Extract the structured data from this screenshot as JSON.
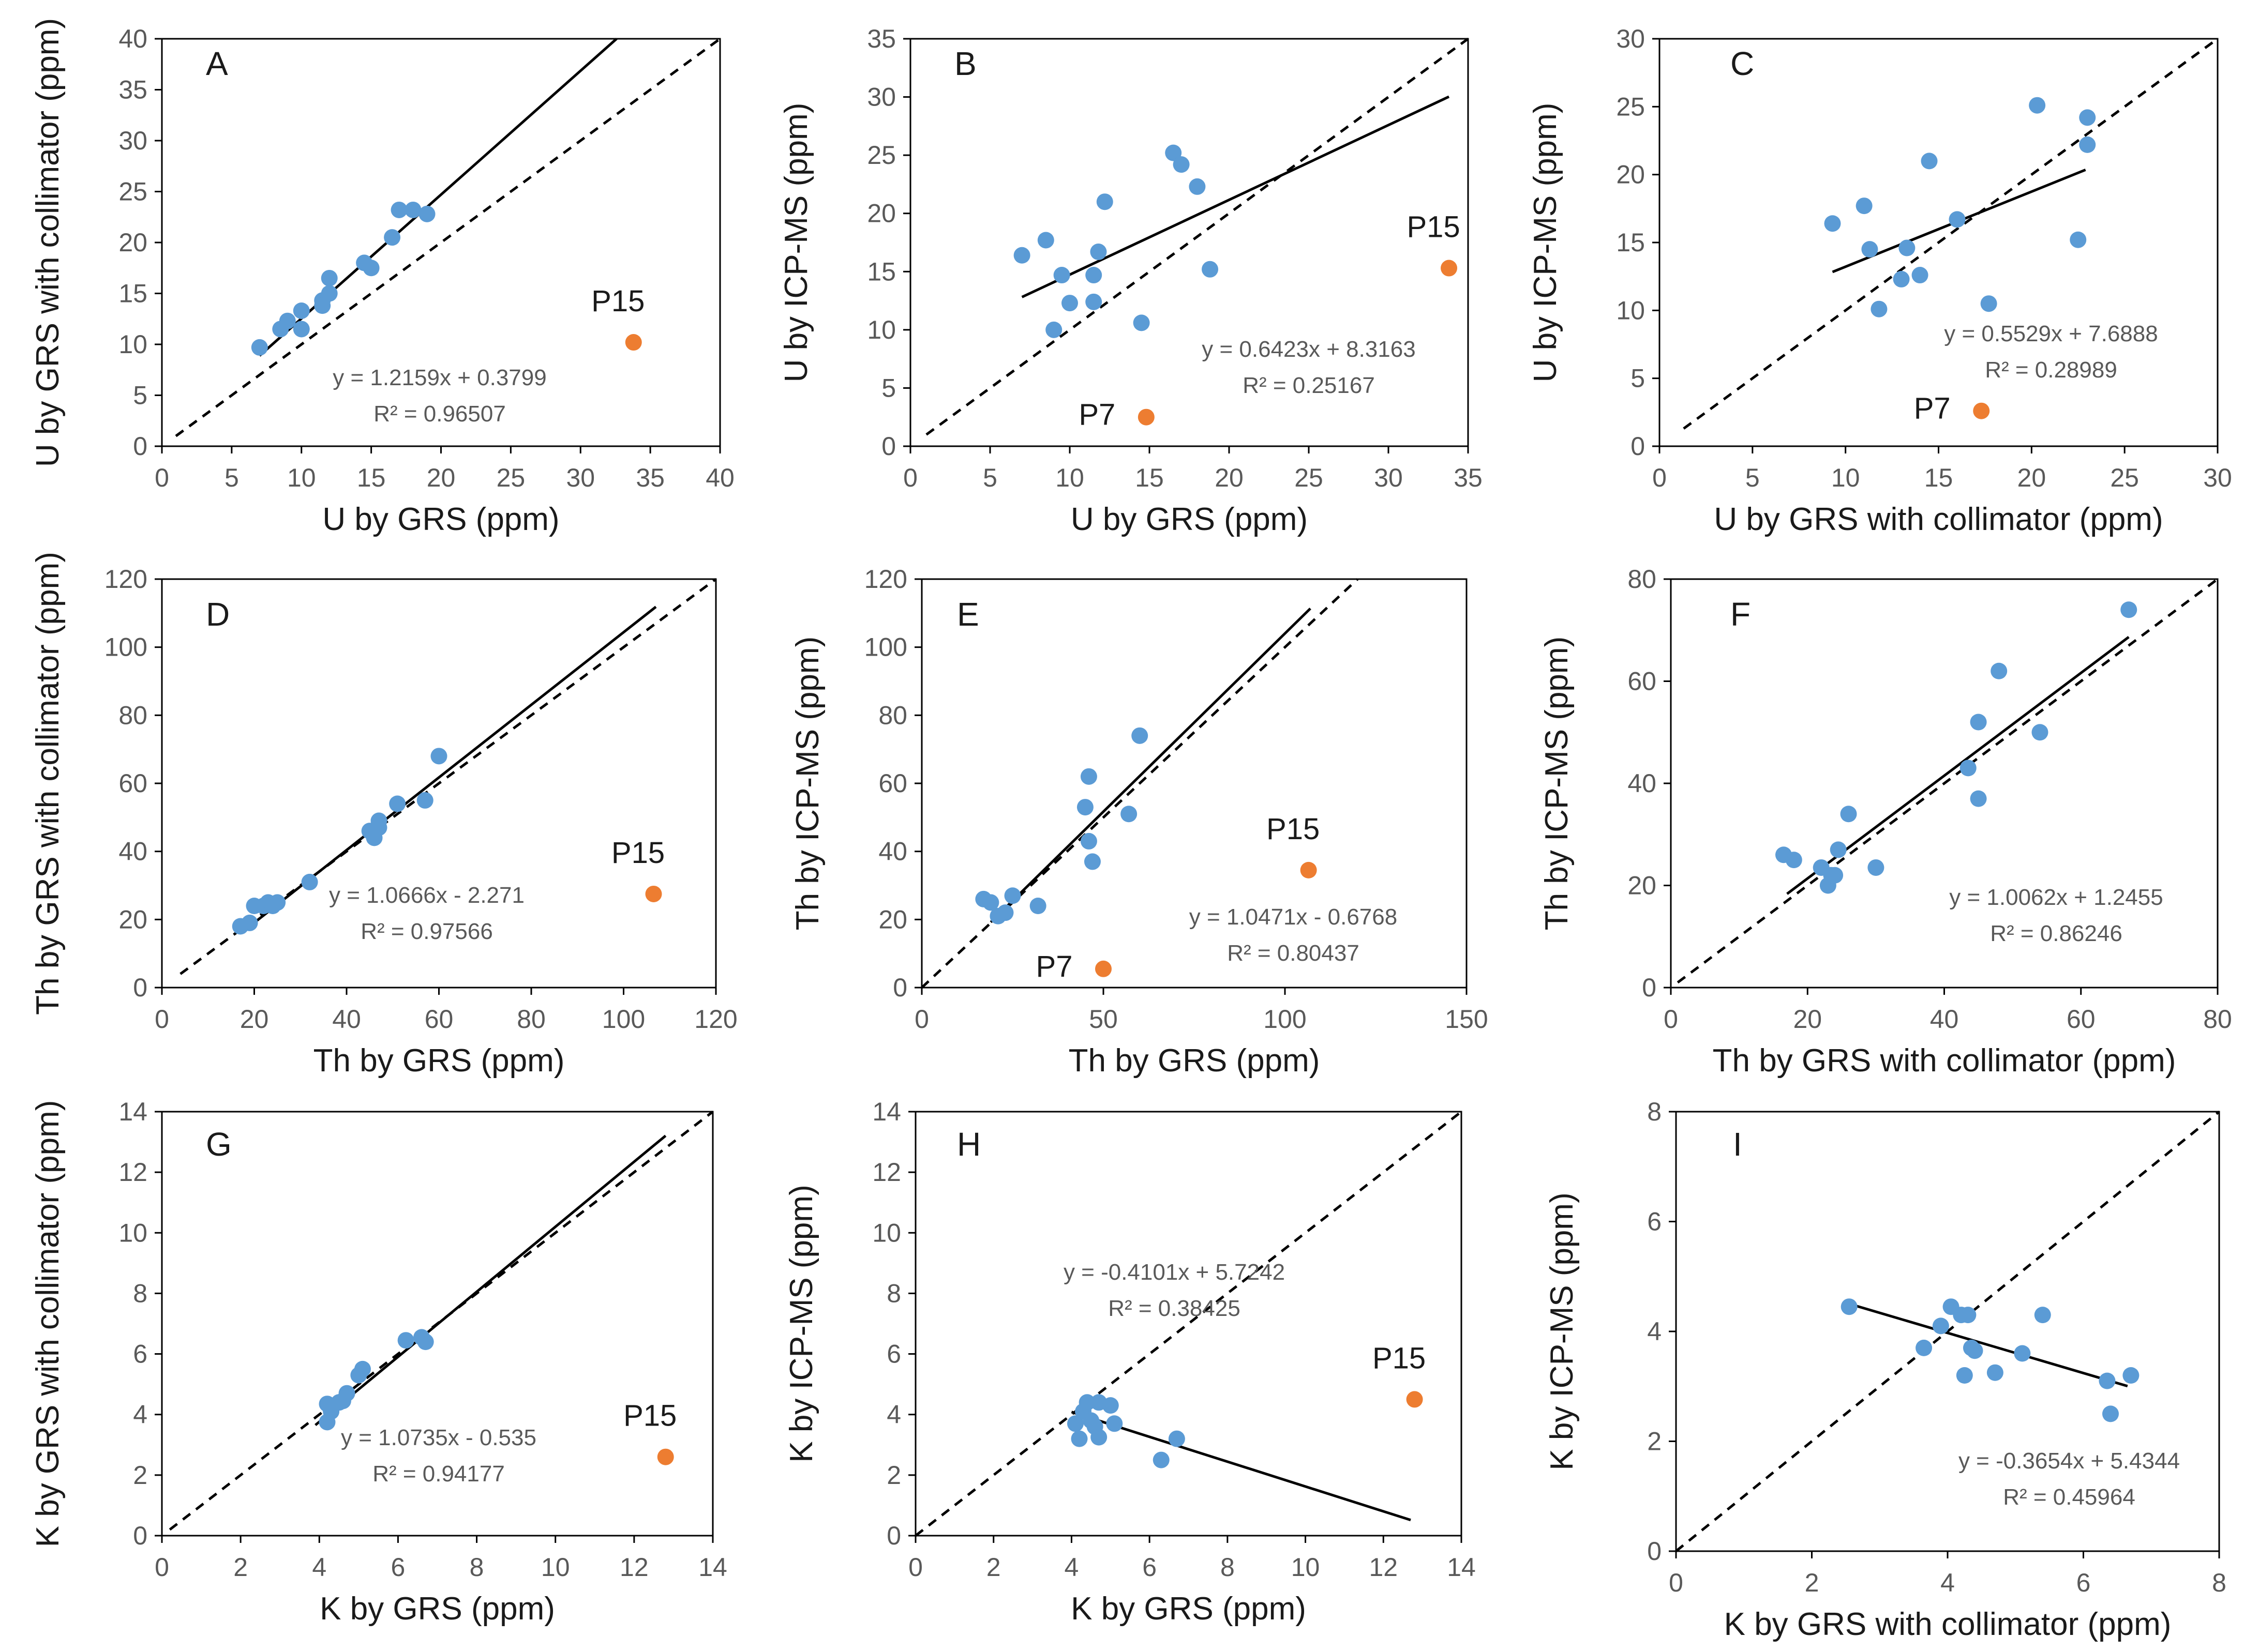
{
  "colors": {
    "point": "#5B9BD5",
    "outlier": "#ED7D31",
    "axis": "#000000",
    "text": "#595959"
  },
  "chart_data": [
    {
      "type": "scatter",
      "panel": "A",
      "xlabel": "U by GRS (ppm)",
      "ylabel": "U by GRS with collimator (ppm)",
      "xlim": [
        0,
        40
      ],
      "ylim": [
        0,
        40
      ],
      "xticks": [
        "0",
        "5",
        "10",
        "15",
        "20",
        "25",
        "30",
        "35",
        "40"
      ],
      "yticks": [
        "0",
        "5",
        "10",
        "15",
        "20",
        "25",
        "30",
        "35",
        "40"
      ],
      "x": [
        7,
        8.5,
        9,
        10,
        10,
        11.5,
        12,
        12,
        11.5,
        14.5,
        15,
        16.5,
        17,
        18,
        19
      ],
      "y": [
        9.7,
        11.5,
        12.3,
        11.5,
        13.3,
        14.3,
        15,
        16.5,
        13.8,
        18,
        17.5,
        20.5,
        23.2,
        23.2,
        22.8
      ],
      "fit": {
        "slope": 1.2159,
        "intercept": 0.3799,
        "x_range": [
          7,
          32.6
        ],
        "equation": "y = 1.2159x + 0.3799",
        "r2": "R² = 0.96507"
      },
      "identity_range": [
        1,
        40
      ],
      "outliers": [
        {
          "x": 33.8,
          "y": 10.2,
          "label": "P15"
        }
      ]
    },
    {
      "type": "scatter",
      "panel": "B",
      "xlabel": "U by GRS (ppm)",
      "ylabel": "U by ICP-MS (ppm)",
      "xlim": [
        0,
        35
      ],
      "ylim": [
        0,
        35
      ],
      "xticks": [
        "0",
        "5",
        "10",
        "15",
        "20",
        "25",
        "30",
        "35"
      ],
      "yticks": [
        "0",
        "5",
        "10",
        "15",
        "20",
        "25",
        "30",
        "35"
      ],
      "x": [
        7,
        8.5,
        9,
        9.5,
        10,
        11.5,
        11.5,
        11.8,
        12.2,
        14.5,
        16.5,
        17,
        18,
        18.8
      ],
      "y": [
        16.4,
        17.7,
        10,
        14.7,
        12.3,
        14.7,
        12.4,
        16.7,
        21,
        10.6,
        25.2,
        24.2,
        22.3,
        15.2
      ],
      "fit": {
        "slope": 0.6423,
        "intercept": 8.3163,
        "x_range": [
          7,
          33.8
        ],
        "equation": "y = 0.6423x + 8.3163",
        "r2": "R² = 0.25167"
      },
      "identity_range": [
        1,
        35
      ],
      "outliers": [
        {
          "x": 14.8,
          "y": 2.5,
          "label": "P7"
        },
        {
          "x": 33.8,
          "y": 15.3,
          "label": "P15"
        }
      ]
    },
    {
      "type": "scatter",
      "panel": "C",
      "xlabel": "U by GRS with collimator (ppm)",
      "ylabel": "U by ICP-MS (ppm)",
      "xlim": [
        0,
        30
      ],
      "ylim": [
        0,
        30
      ],
      "xticks": [
        "0",
        "5",
        "10",
        "15",
        "20",
        "25",
        "30"
      ],
      "yticks": [
        "0",
        "5",
        "10",
        "15",
        "20",
        "25",
        "30"
      ],
      "x": [
        9.3,
        11,
        11.3,
        11.8,
        13,
        13.3,
        14,
        14.5,
        16,
        17.7,
        20.3,
        22.5,
        23,
        23
      ],
      "y": [
        16.4,
        17.7,
        14.5,
        10.1,
        12.3,
        14.6,
        12.6,
        21,
        16.7,
        10.5,
        25.1,
        15.2,
        24.2,
        22.2
      ],
      "fit": {
        "slope": 0.5529,
        "intercept": 7.6888,
        "x_range": [
          9.3,
          22.9
        ],
        "equation": "y = 0.5529x + 7.6888",
        "r2": "R² = 0.28989"
      },
      "identity_range": [
        1.3,
        30
      ],
      "outliers": [
        {
          "x": 17.3,
          "y": 2.6,
          "label": "P7"
        }
      ]
    },
    {
      "type": "scatter",
      "panel": "D",
      "xlabel": "Th by GRS (ppm)",
      "ylabel": "Th by GRS with collimator (ppm)",
      "xlim": [
        0,
        120
      ],
      "ylim": [
        0,
        120
      ],
      "xticks": [
        "0",
        "20",
        "40",
        "60",
        "80",
        "100",
        "120"
      ],
      "yticks": [
        "0",
        "20",
        "40",
        "60",
        "80",
        "100",
        "120"
      ],
      "x": [
        17,
        19,
        20,
        22,
        23,
        24,
        25,
        32,
        45,
        46,
        47,
        47,
        51,
        57,
        60
      ],
      "y": [
        18,
        19,
        24,
        24,
        25,
        24,
        25,
        31,
        46,
        44,
        47,
        49,
        54,
        55,
        68
      ],
      "fit": {
        "slope": 1.0666,
        "intercept": -2.271,
        "x_range": [
          18,
          107
        ],
        "equation": "y = 1.0666x - 2.271",
        "r2": "R² = 0.97566"
      },
      "identity_range": [
        4,
        120
      ],
      "outliers": [
        {
          "x": 106.5,
          "y": 27.5,
          "label": "P15"
        }
      ]
    },
    {
      "type": "scatter",
      "panel": "E",
      "xlabel": "Th by GRS (ppm)",
      "ylabel": "Th by ICP-MS (ppm)",
      "xlim": [
        0,
        150
      ],
      "ylim": [
        0,
        120
      ],
      "xticks": [
        "0",
        "50",
        "100",
        "150"
      ],
      "yticks": [
        "0",
        "20",
        "40",
        "60",
        "80",
        "100",
        "120"
      ],
      "x": [
        17,
        19,
        21,
        23,
        25,
        32,
        45,
        46,
        46,
        47,
        57,
        60
      ],
      "y": [
        26,
        25,
        21,
        22,
        27,
        24,
        53,
        62,
        43,
        37,
        51,
        74
      ],
      "fit": {
        "slope": 1.0471,
        "intercept": -0.6768,
        "x_range": [
          19,
          107
        ],
        "equation": "y = 1.0471x - 0.6768",
        "r2": "R² = 0.80437"
      },
      "identity_range": [
        0,
        150
      ],
      "outliers": [
        {
          "x": 50,
          "y": 5.5,
          "label": "P7"
        },
        {
          "x": 106.5,
          "y": 34.5,
          "label": "P15"
        }
      ]
    },
    {
      "type": "scatter",
      "panel": "F",
      "xlabel": "Th by GRS with collimator (ppm)",
      "ylabel": "Th by ICP-MS (ppm)",
      "xlim": [
        0,
        80
      ],
      "ylim": [
        0,
        80
      ],
      "xticks": [
        "0",
        "20",
        "40",
        "60",
        "80"
      ],
      "yticks": [
        "0",
        "20",
        "40",
        "60",
        "80"
      ],
      "x": [
        16.5,
        18,
        22,
        23,
        23.5,
        24,
        24.5,
        26,
        30,
        43.5,
        45,
        45,
        48,
        54,
        67
      ],
      "y": [
        26,
        25,
        23.5,
        20,
        22,
        22,
        27,
        34,
        23.5,
        43,
        52,
        37,
        62,
        50,
        74
      ],
      "fit": {
        "slope": 1.0062,
        "intercept": 1.2455,
        "x_range": [
          17,
          67
        ],
        "equation": "y = 1.0062x + 1.2455",
        "r2": "R² = 0.86246"
      },
      "identity_range": [
        1,
        80
      ],
      "outliers": []
    },
    {
      "type": "scatter",
      "panel": "G",
      "xlabel": "K by GRS (ppm)",
      "ylabel": "K by GRS with collimator (ppm)",
      "xlim": [
        0,
        14
      ],
      "ylim": [
        0,
        14
      ],
      "xticks": [
        "0",
        "2",
        "4",
        "6",
        "8",
        "10",
        "12",
        "14"
      ],
      "yticks": [
        "0",
        "2",
        "4",
        "6",
        "8",
        "10",
        "12",
        "14"
      ],
      "x": [
        4.2,
        4.2,
        4.3,
        4.5,
        4.6,
        4.7,
        5,
        5.1,
        6.2,
        6.6,
        6.7
      ],
      "y": [
        4.35,
        3.75,
        4.1,
        4.4,
        4.45,
        4.7,
        5.3,
        5.5,
        6.45,
        6.55,
        6.4
      ],
      "fit": {
        "slope": 1.0735,
        "intercept": -0.535,
        "x_range": [
          3.9,
          12.8
        ],
        "equation": "y = 1.0735x - 0.535",
        "r2": "R² = 0.94177"
      },
      "identity_range": [
        0.2,
        14
      ],
      "outliers": [
        {
          "x": 12.8,
          "y": 2.6,
          "label": "P15"
        }
      ]
    },
    {
      "type": "scatter",
      "panel": "H",
      "xlabel": "K by GRS (ppm)",
      "ylabel": "K by ICP-MS (ppm)",
      "xlim": [
        0,
        14
      ],
      "ylim": [
        0,
        14
      ],
      "xticks": [
        "0",
        "2",
        "4",
        "6",
        "8",
        "10",
        "12",
        "14"
      ],
      "yticks": [
        "0",
        "2",
        "4",
        "6",
        "8",
        "10",
        "12",
        "14"
      ],
      "x": [
        4.1,
        4.2,
        4.3,
        4.4,
        4.5,
        4.6,
        4.7,
        4.7,
        5,
        5.1,
        6.3,
        6.7
      ],
      "y": [
        3.7,
        3.2,
        4.1,
        4.4,
        3.8,
        3.6,
        4.4,
        3.25,
        4.3,
        3.7,
        2.5,
        3.2
      ],
      "fit": {
        "slope": -0.4101,
        "intercept": 5.7242,
        "x_range": [
          4.0,
          12.7
        ],
        "equation": "y = -0.4101x + 5.7242",
        "r2": "R² = 0.38425"
      },
      "identity_range": [
        0,
        14
      ],
      "outliers": [
        {
          "x": 12.8,
          "y": 4.5,
          "label": "P15"
        }
      ]
    },
    {
      "type": "scatter",
      "panel": "I",
      "xlabel": "K by GRS with collimator (ppm)",
      "ylabel": "K by ICP-MS (ppm)",
      "xlim": [
        0,
        8
      ],
      "ylim": [
        0,
        8
      ],
      "xticks": [
        "0",
        "2",
        "4",
        "6",
        "8"
      ],
      "yticks": [
        "0",
        "2",
        "4",
        "6",
        "8"
      ],
      "x": [
        2.55,
        3.65,
        3.9,
        4.05,
        4.2,
        4.25,
        4.3,
        4.35,
        4.4,
        4.7,
        5.1,
        5.4,
        6.35,
        6.4,
        6.7
      ],
      "y": [
        4.45,
        3.7,
        4.1,
        4.45,
        4.3,
        3.2,
        4.3,
        3.7,
        3.65,
        3.25,
        3.6,
        4.3,
        3.1,
        2.5,
        3.2
      ],
      "fit": {
        "slope": -0.3654,
        "intercept": 5.4344,
        "x_range": [
          2.55,
          6.65
        ],
        "equation": "y = -0.3654x + 5.4344",
        "r2": "R² = 0.45964"
      },
      "identity_range": [
        0,
        8
      ],
      "outliers": []
    }
  ]
}
